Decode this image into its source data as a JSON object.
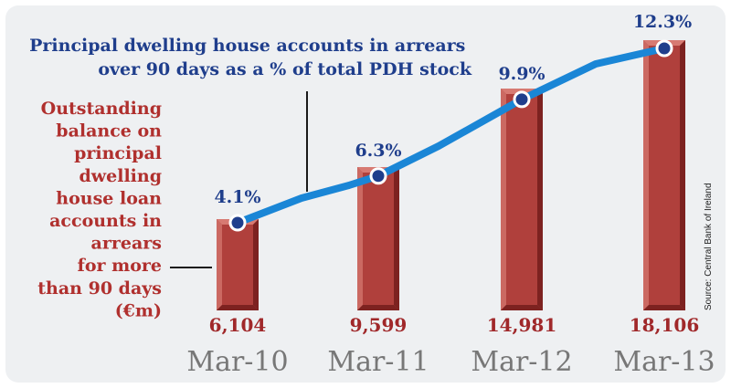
{
  "chart_data": {
    "type": "bar",
    "categories": [
      "Mar-10",
      "Mar-11",
      "Mar-12",
      "Mar-13"
    ],
    "series": [
      {
        "name": "Outstanding balance on principal dwelling house loan accounts in arrears for more than 90 days (€m)",
        "values": [
          6104,
          9599,
          14981,
          18106
        ],
        "labels": [
          "6,104",
          "9,599",
          "14,981",
          "18,106"
        ]
      },
      {
        "name": "Principal dwelling house accounts in arrears over 90 days as a % of total PDH stock",
        "values": [
          4.1,
          6.3,
          9.9,
          12.3
        ],
        "labels": [
          "4.1%",
          "6.3%",
          "9.9%",
          "12.3%"
        ],
        "type": "line"
      }
    ],
    "line_legend": [
      "Principal dwelling house accounts in arrears",
      "over 90 days as a % of total PDH stock"
    ],
    "bar_legend": [
      "Outstanding",
      "balance on",
      "principal",
      "dwelling",
      "house loan",
      "accounts in",
      "arrears",
      "for more",
      "than 90 days",
      "(€m)"
    ],
    "source": "Source: Central Bank of Ireland",
    "ylim_bars": [
      0,
      18106
    ],
    "ylim_line": [
      4.1,
      12.3
    ],
    "grid": false,
    "colors": {
      "panel": "#eef0f2",
      "bar_face": "#b0403c",
      "bar_dark": "#7d2220",
      "bar_light": "#d77a72",
      "bar_value": "#a0282a",
      "bar_legend": "#b0302e",
      "line": "#1a86d6",
      "line_value": "#1f3e8c",
      "line_legend": "#1f3e8c",
      "axis_label": "#777777"
    }
  }
}
